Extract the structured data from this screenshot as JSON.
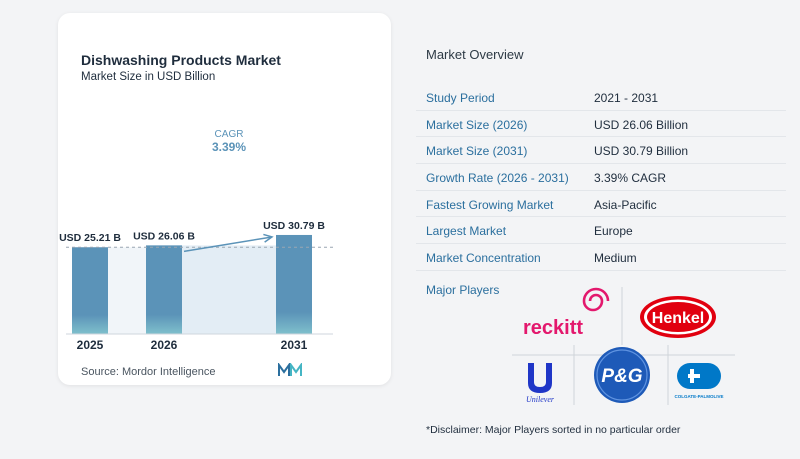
{
  "chart_data": {
    "type": "bar",
    "title": "Dishwashing Products Market",
    "subtitle": "Market Size in USD Billion",
    "categories": [
      "2025",
      "2026",
      "2031"
    ],
    "values": [
      25.21,
      26.06,
      30.79
    ],
    "value_labels": [
      "USD 25.21 B",
      "USD 26.06 B",
      "USD 30.79 B"
    ],
    "cagr_label": "CAGR",
    "cagr_value": "3.39%",
    "grid": false,
    "bar_color": "#5b93b8",
    "bar_color_bottom": "#7fc0cc",
    "band_color": "#e3edf5",
    "source": "Source:  Mordor Intelligence"
  },
  "overview": {
    "heading": "Market Overview",
    "rows": [
      {
        "key": "Study Period",
        "value": "2021 - 2031"
      },
      {
        "key": "Market Size (2026)",
        "value": "USD 26.06 Billion"
      },
      {
        "key": "Market Size (2031)",
        "value": "USD 30.79 Billion"
      },
      {
        "key": "Growth Rate (2026 - 2031)",
        "value": "3.39% CAGR"
      },
      {
        "key": "Fastest Growing Market",
        "value": "Asia-Pacific"
      },
      {
        "key": "Largest Market",
        "value": "Europe"
      },
      {
        "key": "Market Concentration",
        "value": "Medium"
      }
    ],
    "major_players_label": "Major Players",
    "players": [
      "reckitt",
      "Henkel",
      "Unilever",
      "P&G",
      "COLGATE-PALMOLIVE"
    ],
    "disclaimer": "*Disclaimer: Major Players sorted in no particular order"
  }
}
